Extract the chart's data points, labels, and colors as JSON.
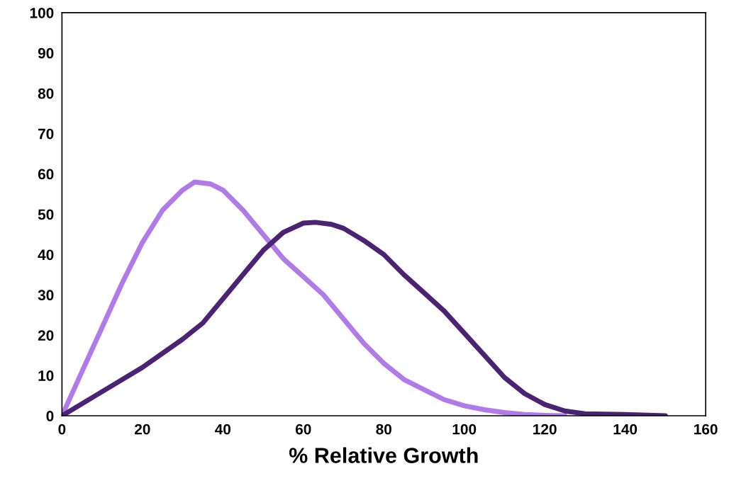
{
  "chart_data": {
    "type": "line",
    "xlabel": "% Relative Growth",
    "series": [
      {
        "color": "#b07ae8",
        "x": [
          0,
          5,
          10,
          15,
          20,
          25,
          30,
          33,
          37,
          40,
          45,
          50,
          55,
          60,
          65,
          70,
          75,
          80,
          85,
          90,
          95,
          100,
          105,
          110,
          115,
          120,
          125
        ],
        "values": [
          0,
          11,
          22,
          33,
          43,
          51,
          56,
          58,
          57.5,
          56,
          51,
          45,
          39,
          34.5,
          30,
          24,
          18,
          13,
          9,
          6.5,
          4,
          2.5,
          1.5,
          0.8,
          0.3,
          0.1,
          0
        ]
      },
      {
        "color": "#4a2473",
        "x": [
          0,
          10,
          20,
          30,
          35,
          40,
          45,
          50,
          55,
          60,
          63,
          67,
          70,
          75,
          80,
          85,
          90,
          95,
          100,
          105,
          110,
          115,
          120,
          125,
          130,
          140,
          150
        ],
        "values": [
          0,
          6,
          12,
          19,
          23,
          29,
          35,
          41,
          45.5,
          47.8,
          48,
          47.5,
          46.5,
          43.5,
          40,
          35,
          30.5,
          26,
          20.5,
          15,
          9.5,
          5.5,
          2.8,
          1.2,
          0.5,
          0.3,
          0
        ]
      }
    ],
    "xlim": [
      0,
      160
    ],
    "xticks": [
      0,
      20,
      40,
      60,
      80,
      100,
      120,
      140,
      160
    ],
    "ylim": [
      0,
      100
    ],
    "yticks": [
      0,
      10,
      20,
      30,
      40,
      50,
      60,
      70,
      80,
      90,
      100
    ],
    "grid": false,
    "legend": false,
    "marker": "none",
    "line_style": "solid"
  }
}
